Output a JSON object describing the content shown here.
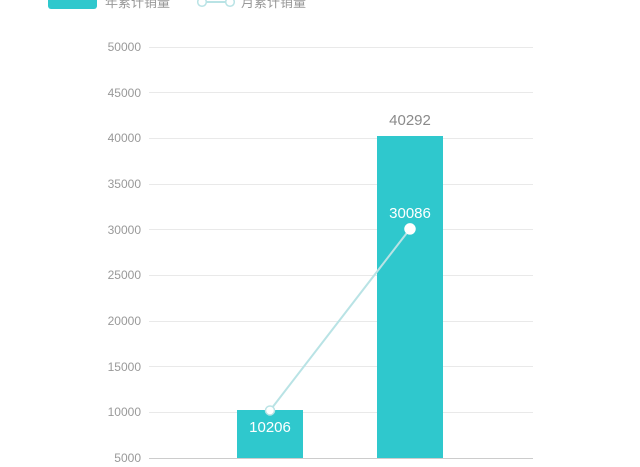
{
  "legend": {
    "items": [
      {
        "label": "年累计销量",
        "marker": "bar-swatch"
      },
      {
        "label": "月累计销量",
        "marker": "line-with-circles"
      }
    ]
  },
  "chart_data": {
    "type": "bar+line",
    "categories": [
      "",
      ""
    ],
    "series": [
      {
        "name": "年累计销量",
        "type": "bar",
        "values": [
          10206,
          40292
        ]
      },
      {
        "name": "月累计销量",
        "type": "line",
        "values": [
          10206,
          30086
        ]
      }
    ],
    "ylim": [
      5000,
      50000
    ],
    "y_tick_interval": 5000,
    "y_ticks": [
      50000,
      45000,
      40000,
      35000,
      30000,
      25000,
      20000,
      15000,
      10000,
      5000
    ],
    "grid": true,
    "legend_position": "top-left",
    "point_labels": {
      "bar": [
        "",
        "40292"
      ],
      "line": [
        "10206",
        "30086"
      ]
    }
  },
  "colors": {
    "bar": "#2fc8cd",
    "line": "#b9e3e5",
    "point_fill": "#ffffff",
    "grid_line": "#e9e9e9",
    "axis_line": "#cccccc",
    "tick_text": "#999999",
    "outside_label": "#8a8a8a",
    "inside_label": "#ffffff",
    "legend_text": "#999999",
    "background": "#ffffff"
  }
}
